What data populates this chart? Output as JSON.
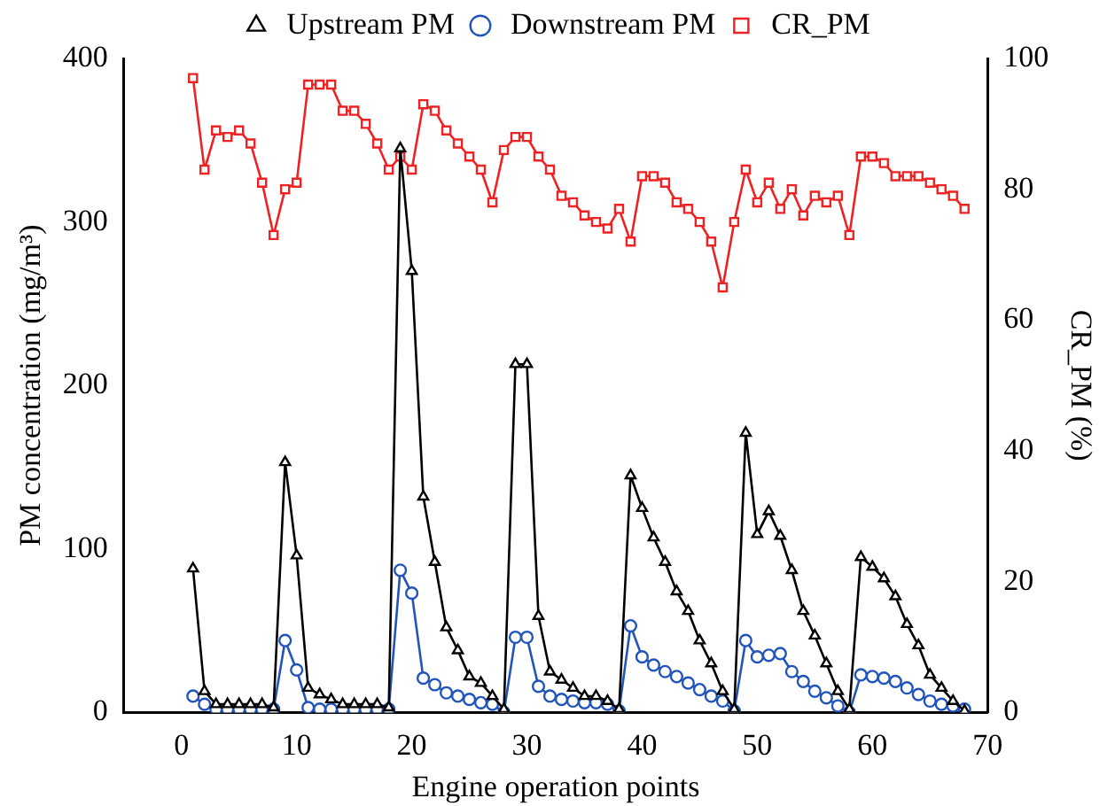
{
  "chart_data": {
    "type": "line",
    "xlabel": "Engine operation points",
    "ylabel": "PM concentration (mg/m³)",
    "y2label": "CR_PM (%)",
    "x": [
      1,
      2,
      3,
      4,
      5,
      6,
      7,
      8,
      9,
      10,
      11,
      12,
      13,
      14,
      15,
      16,
      17,
      18,
      19,
      20,
      21,
      22,
      23,
      24,
      25,
      26,
      27,
      28,
      29,
      30,
      31,
      32,
      33,
      34,
      35,
      36,
      37,
      38,
      39,
      40,
      41,
      42,
      43,
      44,
      45,
      46,
      47,
      48,
      49,
      50,
      51,
      52,
      53,
      54,
      55,
      56,
      57,
      58,
      59,
      60,
      61,
      62,
      63,
      64,
      65,
      66,
      67,
      68
    ],
    "series": [
      {
        "name": "Upstream PM",
        "color": "#000000",
        "marker": "triangle",
        "values": [
          88,
          13,
          5,
          5,
          5,
          5,
          5,
          3,
          153,
          96,
          15,
          11,
          8,
          5,
          5,
          5,
          5,
          3,
          345,
          270,
          132,
          92,
          52,
          38,
          22,
          18,
          10,
          2,
          213,
          213,
          59,
          25,
          20,
          15,
          10,
          10,
          7,
          2,
          145,
          125,
          107,
          92,
          74,
          62,
          44,
          30,
          13,
          2,
          171,
          109,
          123,
          108,
          87,
          62,
          47,
          30,
          13,
          2,
          95,
          89,
          82,
          71,
          54,
          41,
          23,
          15,
          7,
          1
        ]
      },
      {
        "name": "Downstream PM",
        "color": "#2255bb",
        "marker": "circle",
        "values": [
          10,
          5,
          2,
          2,
          2,
          2,
          2,
          2,
          44,
          26,
          3,
          2,
          2,
          2,
          2,
          2,
          2,
          2,
          87,
          73,
          21,
          17,
          12,
          10,
          8,
          6,
          5,
          0,
          46,
          46,
          16,
          10,
          8,
          7,
          6,
          6,
          5,
          1,
          53,
          34,
          29,
          25,
          22,
          18,
          14,
          10,
          7,
          1,
          44,
          34,
          35,
          36,
          25,
          19,
          13,
          9,
          4,
          0,
          23,
          22,
          21,
          19,
          15,
          11,
          7,
          5,
          4,
          2
        ]
      },
      {
        "name": "CR_PM",
        "color": "#ee2222",
        "marker": "square",
        "axis": "y2",
        "values": [
          97,
          83,
          89,
          88,
          89,
          87,
          81,
          73,
          80,
          81,
          96,
          96,
          96,
          92,
          92,
          90,
          87,
          83,
          85,
          83,
          93,
          92,
          89,
          87,
          85,
          83,
          78,
          86,
          88,
          88,
          85,
          83,
          79,
          78,
          76,
          75,
          74,
          77,
          72,
          82,
          82,
          81,
          78,
          77,
          75,
          72,
          65,
          75,
          83,
          78,
          81,
          77,
          80,
          76,
          79,
          78,
          79,
          73,
          85,
          85,
          84,
          82,
          82,
          82,
          81,
          80,
          79,
          77
        ]
      }
    ],
    "xlim": [
      -5,
      70
    ],
    "xticks": [
      0,
      10,
      20,
      30,
      40,
      50,
      60,
      70
    ],
    "ylim": [
      0,
      400
    ],
    "yticks": [
      0,
      100,
      200,
      300,
      400
    ],
    "y2lim": [
      0,
      100
    ],
    "y2ticks": [
      0,
      20,
      40,
      60,
      80,
      100
    ],
    "grid": false,
    "legend": "top",
    "line_style": "solid"
  }
}
